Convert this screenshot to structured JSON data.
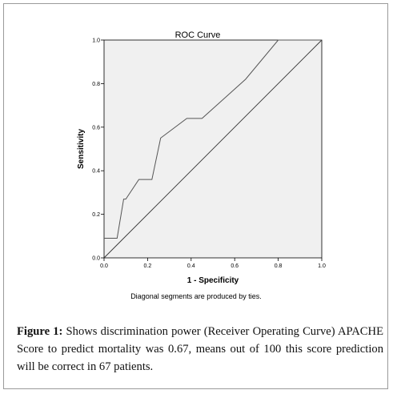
{
  "chart_data": {
    "type": "line",
    "title": "ROC Curve",
    "xlabel": "1 - Specificity",
    "ylabel": "Sensitivity",
    "xlim": [
      0.0,
      1.0
    ],
    "ylim": [
      0.0,
      1.0
    ],
    "x_ticks": [
      "0.0",
      "0.2",
      "0.4",
      "0.6",
      "0.8",
      "1.0"
    ],
    "y_ticks": [
      "0.0",
      "0.2",
      "0.4",
      "0.6",
      "0.8",
      "1.0"
    ],
    "grid": false,
    "legend": "none",
    "note": "Diagonal segments are produced by ties.",
    "series": [
      {
        "points": [
          [
            0.0,
            0.09
          ],
          [
            0.06,
            0.09
          ],
          [
            0.09,
            0.27
          ],
          [
            0.1,
            0.27
          ],
          [
            0.16,
            0.36
          ],
          [
            0.22,
            0.36
          ],
          [
            0.26,
            0.55
          ],
          [
            0.38,
            0.64
          ],
          [
            0.45,
            0.64
          ],
          [
            0.65,
            0.82
          ],
          [
            0.8,
            1.0
          ],
          [
            1.0,
            1.0
          ]
        ]
      },
      {
        "points": [
          [
            0.0,
            0.0
          ],
          [
            1.0,
            1.0
          ]
        ]
      }
    ]
  },
  "caption": {
    "label": "Figure 1:",
    "text": " Shows discrimination power (Receiver Operating Curve) APACHE Score to predict mortality was 0.67, means out of 100 this score prediction will be correct in 67 patients."
  }
}
